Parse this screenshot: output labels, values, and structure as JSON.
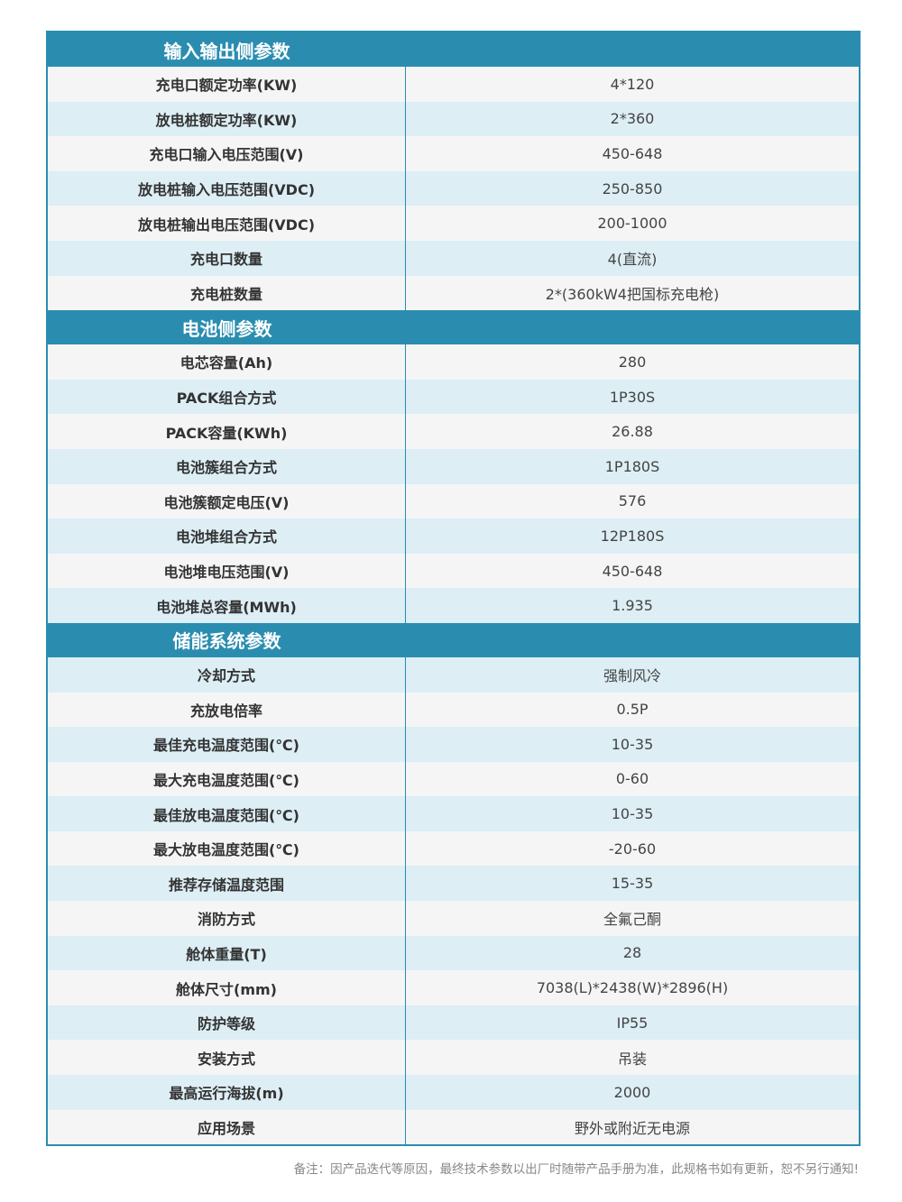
{
  "accent_color": "#2a8db0",
  "sections": [
    {
      "title": "输入输出侧参数",
      "rows": [
        [
          "充电口额定功率(KW)",
          "4*120"
        ],
        [
          "放电桩额定功率(KW)",
          "2*360"
        ],
        [
          "充电口输入电压范围(V)",
          "450-648"
        ],
        [
          "放电桩输入电压范围(VDC)",
          "250-850"
        ],
        [
          "放电桩输出电压范围(VDC)",
          "200-1000"
        ],
        [
          "充电口数量",
          "4(直流)"
        ],
        [
          "充电桩数量",
          "2*(360kW4把国标充电枪)"
        ]
      ]
    },
    {
      "title": "电池侧参数",
      "rows": [
        [
          "电芯容量(Ah)",
          "280"
        ],
        [
          "PACK组合方式",
          "1P30S"
        ],
        [
          "PACK容量(KWh)",
          "26.88"
        ],
        [
          "电池簇组合方式",
          "1P180S"
        ],
        [
          "电池簇额定电压(V)",
          "576"
        ],
        [
          "电池堆组合方式",
          "12P180S"
        ],
        [
          "电池堆电压范围(V)",
          "450-648"
        ],
        [
          "电池堆总容量(MWh)",
          "1.935"
        ]
      ]
    },
    {
      "title": "储能系统参数",
      "rows": [
        [
          "冷却方式",
          "强制风冷"
        ],
        [
          "充放电倍率",
          "0.5P"
        ],
        [
          "最佳充电温度范围(℃)",
          "10-35"
        ],
        [
          "最大充电温度范围(℃)",
          "0-60"
        ],
        [
          "最佳放电温度范围(℃)",
          "10-35"
        ],
        [
          "最大放电温度范围(℃)",
          "-20-60"
        ],
        [
          "推荐存储温度范围",
          "15-35"
        ],
        [
          "消防方式",
          "全氟己酮"
        ],
        [
          "舱体重量(T)",
          "28"
        ],
        [
          "舱体尺寸(mm)",
          "7038(L)*2438(W)*2896(H)"
        ],
        [
          "防护等级",
          "IP55"
        ],
        [
          "安装方式",
          "吊装"
        ],
        [
          "最高运行海拔(m)",
          "2000"
        ],
        [
          "应用场景",
          "野外或附近无电源"
        ]
      ]
    }
  ],
  "note": "备注：因产品迭代等原因，最终技术参数以出厂时随带产品手册为准，此规格书如有更新，恕不另行通知!"
}
